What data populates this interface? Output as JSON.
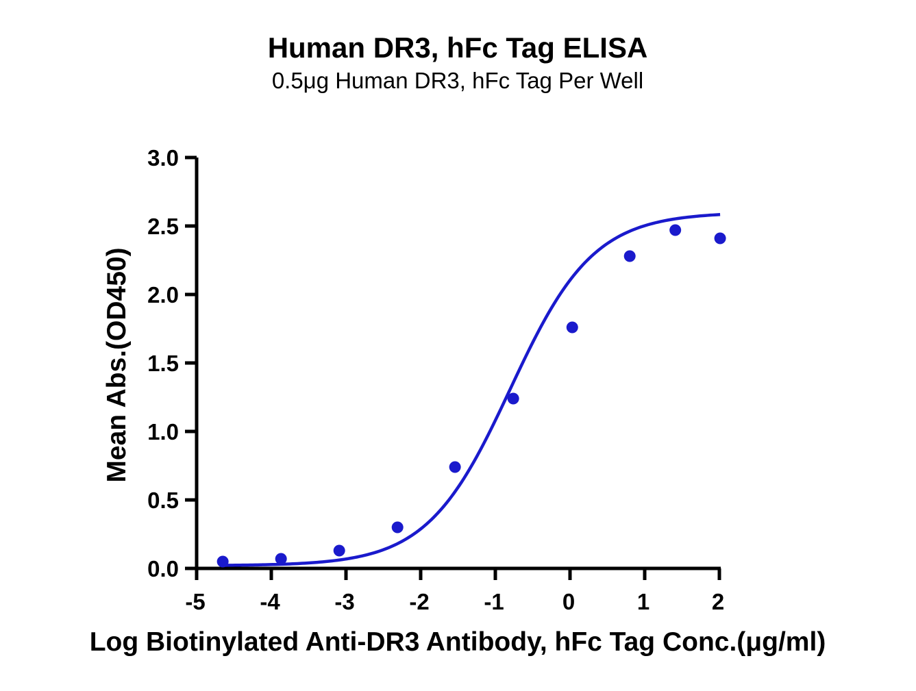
{
  "chart_data": {
    "type": "scatter",
    "title": "Human DR3, hFc Tag ELISA",
    "subtitle": "0.5μg Human DR3, hFc Tag Per Well",
    "xlabel": "Log Biotinylated Anti-DR3 Antibody, hFc Tag Conc.(μg/ml)",
    "ylabel": "Mean Abs.(OD450)",
    "xlim": [
      -5,
      2
    ],
    "ylim": [
      0.0,
      3.0
    ],
    "xticks": [
      -5,
      -4,
      -3,
      -2,
      -1,
      0,
      1,
      2
    ],
    "xtick_labels": [
      "-5",
      "-4",
      "-3",
      "-2",
      "-1",
      "0",
      "1",
      "2"
    ],
    "yticks": [
      0.0,
      0.5,
      1.0,
      1.5,
      2.0,
      2.5,
      3.0
    ],
    "ytick_labels": [
      "0.0",
      "0.5",
      "1.0",
      "1.5",
      "2.0",
      "2.5",
      "3.0"
    ],
    "grid": false,
    "legend": "none",
    "color": "#1a1acc",
    "series": [
      {
        "x": [
          -4.65,
          -3.87,
          -3.09,
          -2.31,
          -1.54,
          -0.76,
          0.03,
          0.8,
          1.41,
          2.01
        ],
        "y": [
          0.05,
          0.07,
          0.13,
          0.3,
          0.74,
          1.24,
          1.76,
          2.28,
          2.47,
          2.41
        ]
      }
    ],
    "fit_curve": {
      "model": "4PL",
      "bottom": 0.02,
      "top": 2.6,
      "logEC50": -0.8,
      "hill": 0.78,
      "x_range": [
        -4.65,
        2.01
      ]
    }
  }
}
